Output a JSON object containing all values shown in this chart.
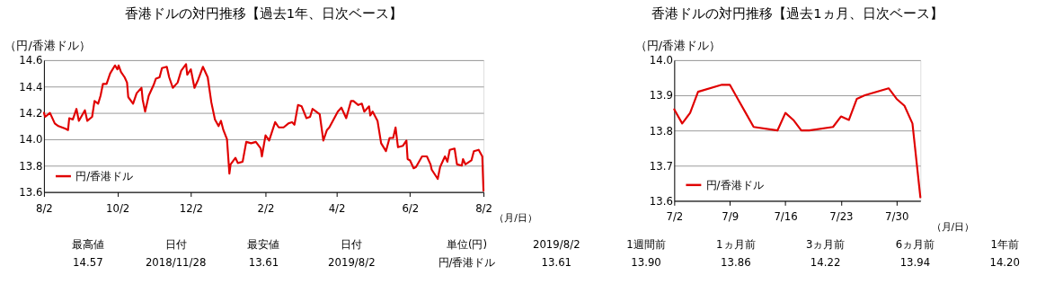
{
  "chart_data": [
    {
      "type": "line",
      "title": "香港ドルの対円推移【過去1年、日次ベース】",
      "ylabel": "（円/香港ドル）",
      "xlabel": "（月/日）",
      "x": [
        "2018-08-02",
        "2018-08-03",
        "2018-08-07",
        "2018-08-11",
        "2018-08-14",
        "2018-08-17",
        "2018-08-20",
        "2018-08-22",
        "2018-08-23",
        "2018-08-26",
        "2018-08-29",
        "2018-08-31",
        "2018-09-05",
        "2018-09-07",
        "2018-09-11",
        "2018-09-13",
        "2018-09-16",
        "2018-09-18",
        "2018-09-20",
        "2018-09-23",
        "2018-09-26",
        "2018-09-30",
        "2018-10-02",
        "2018-10-03",
        "2018-10-05",
        "2018-10-08",
        "2018-10-10",
        "2018-10-11",
        "2018-10-15",
        "2018-10-18",
        "2018-10-22",
        "2018-10-23",
        "2018-10-25",
        "2018-10-28",
        "2018-11-01",
        "2018-11-03",
        "2018-11-06",
        "2018-11-08",
        "2018-11-12",
        "2018-11-14",
        "2018-11-17",
        "2018-11-21",
        "2018-11-24",
        "2018-11-28",
        "2018-11-29",
        "2018-12-02",
        "2018-12-05",
        "2018-12-08",
        "2018-12-12",
        "2018-12-16",
        "2018-12-19",
        "2018-12-22",
        "2018-12-25",
        "2018-12-27",
        "2018-12-29",
        "2019-01-01",
        "2019-01-03",
        "2019-01-04",
        "2019-01-08",
        "2019-01-10",
        "2019-01-14",
        "2019-01-17",
        "2019-01-21",
        "2019-01-25",
        "2019-01-29",
        "2019-01-30",
        "2019-02-02",
        "2019-02-05",
        "2019-02-10",
        "2019-02-13",
        "2019-02-17",
        "2019-02-21",
        "2019-02-24",
        "2019-02-26",
        "2019-03-01",
        "2019-03-04",
        "2019-03-08",
        "2019-03-11",
        "2019-03-13",
        "2019-03-19",
        "2019-03-22",
        "2019-03-25",
        "2019-03-27",
        "2019-04-03",
        "2019-04-06",
        "2019-04-10",
        "2019-04-14",
        "2019-04-16",
        "2019-04-20",
        "2019-04-23",
        "2019-04-25",
        "2019-04-29",
        "2019-04-30",
        "2019-05-02",
        "2019-05-06",
        "2019-05-09",
        "2019-05-13",
        "2019-05-16",
        "2019-05-19",
        "2019-05-21",
        "2019-05-23",
        "2019-05-27",
        "2019-05-30",
        "2019-05-31",
        "2019-06-02",
        "2019-06-05",
        "2019-06-07",
        "2019-06-12",
        "2019-06-16",
        "2019-06-19",
        "2019-06-20",
        "2019-06-25",
        "2019-06-27",
        "2019-07-01",
        "2019-07-03",
        "2019-07-05",
        "2019-07-09",
        "2019-07-11",
        "2019-07-15",
        "2019-07-16",
        "2019-07-18",
        "2019-07-23",
        "2019-07-25",
        "2019-07-29",
        "2019-08-01",
        "2019-08-02"
      ],
      "series": [
        {
          "name": "円/香港ドル",
          "color": "#e00000",
          "values": [
            14.2,
            14.17,
            14.2,
            14.12,
            14.1,
            14.09,
            14.08,
            14.07,
            14.16,
            14.15,
            14.23,
            14.14,
            14.22,
            14.14,
            14.17,
            14.29,
            14.27,
            14.33,
            14.42,
            14.42,
            14.5,
            14.56,
            14.53,
            14.56,
            14.51,
            14.47,
            14.43,
            14.32,
            14.27,
            14.35,
            14.39,
            14.3,
            14.21,
            14.33,
            14.41,
            14.46,
            14.47,
            14.54,
            14.55,
            14.47,
            14.39,
            14.43,
            14.52,
            14.57,
            14.49,
            14.53,
            14.39,
            14.45,
            14.55,
            14.47,
            14.28,
            14.15,
            14.1,
            14.14,
            14.07,
            14.0,
            13.74,
            13.81,
            13.86,
            13.82,
            13.83,
            13.98,
            13.97,
            13.98,
            13.93,
            13.87,
            14.03,
            13.99,
            14.13,
            14.09,
            14.09,
            14.12,
            14.13,
            14.11,
            14.26,
            14.25,
            14.16,
            14.17,
            14.23,
            14.19,
            13.99,
            14.07,
            14.09,
            14.21,
            14.24,
            14.16,
            14.29,
            14.29,
            14.26,
            14.27,
            14.21,
            14.25,
            14.18,
            14.21,
            14.14,
            13.97,
            13.91,
            14.01,
            14.01,
            14.09,
            13.94,
            13.95,
            13.99,
            13.85,
            13.84,
            13.78,
            13.79,
            13.87,
            13.87,
            13.81,
            13.77,
            13.7,
            13.79,
            13.87,
            13.83,
            13.92,
            13.93,
            13.81,
            13.8,
            13.85,
            13.81,
            13.84,
            13.91,
            13.92,
            13.87,
            13.61
          ]
        }
      ],
      "xlim": [
        "2018-08-02",
        "2019-08-02"
      ],
      "xticks": [
        {
          "value": "2018-08-02",
          "label": "8/2"
        },
        {
          "value": "2018-10-02",
          "label": "10/2"
        },
        {
          "value": "2018-12-02",
          "label": "12/2"
        },
        {
          "value": "2019-02-02",
          "label": "2/2"
        },
        {
          "value": "2019-04-02",
          "label": "4/2"
        },
        {
          "value": "2019-06-02",
          "label": "6/2"
        },
        {
          "value": "2019-08-02",
          "label": "8/2"
        }
      ],
      "ylim": [
        13.6,
        14.6
      ],
      "yticks": [
        13.6,
        13.8,
        {
          "value": 14,
          "label": "14.0"
        },
        14.2,
        14.4,
        14.6
      ],
      "grid": "y",
      "legend": "bottom left",
      "annotations": [
        "最高値",
        "日付",
        "最安値",
        "日付",
        "14.57",
        "2018/11/28",
        "13.61",
        "2019/8/2"
      ]
    },
    {
      "type": "line",
      "title": "香港ドルの対円推移【過去1ヵ月、日次ベース】",
      "ylabel": "（円/香港ドル）",
      "xlabel": "（月/日）",
      "x": [
        "2019-07-02",
        "2019-07-03",
        "2019-07-04",
        "2019-07-05",
        "2019-07-08",
        "2019-07-09",
        "2019-07-10",
        "2019-07-11",
        "2019-07-12",
        "2019-07-15",
        "2019-07-16",
        "2019-07-17",
        "2019-07-18",
        "2019-07-19",
        "2019-07-22",
        "2019-07-23",
        "2019-07-24",
        "2019-07-25",
        "2019-07-26",
        "2019-07-29",
        "2019-07-30",
        "2019-07-31",
        "2019-08-01",
        "2019-08-02"
      ],
      "series": [
        {
          "name": "円/香港ドル",
          "color": "#e00000",
          "values": [
            13.86,
            13.82,
            13.85,
            13.91,
            13.93,
            13.93,
            13.89,
            13.85,
            13.81,
            13.8,
            13.85,
            13.83,
            13.8,
            13.8,
            13.81,
            13.84,
            13.83,
            13.89,
            13.9,
            13.92,
            13.89,
            13.87,
            13.82,
            13.61
          ]
        }
      ],
      "xlim": [
        "2019-07-02",
        "2019-08-02"
      ],
      "xticks": [
        {
          "value": "2019-07-02",
          "label": "7/2"
        },
        {
          "value": "2019-07-09",
          "label": "7/9"
        },
        {
          "value": "2019-07-16",
          "label": "7/16"
        },
        {
          "value": "2019-07-23",
          "label": "7/23"
        },
        {
          "value": "2019-07-30",
          "label": "7/30"
        }
      ],
      "ylim": [
        13.6,
        14.0
      ],
      "yticks": [
        13.6,
        13.7,
        13.8,
        13.9,
        {
          "value": 14,
          "label": "14.0"
        }
      ],
      "grid": "y",
      "legend": "bottom left",
      "annotations": [
        "単位(円)",
        "2019/8/2",
        "1週間前",
        "1ヵ月前",
        "3ヵ月前",
        "6ヵ月前",
        "1年前",
        "円/香港ドル",
        "13.61",
        "13.90",
        "13.86",
        "14.22",
        "13.94",
        "14.20"
      ]
    }
  ]
}
